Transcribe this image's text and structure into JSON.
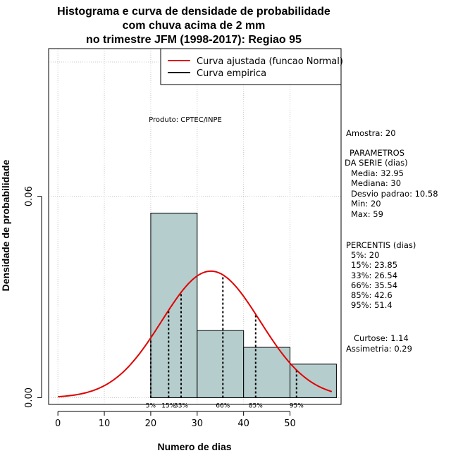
{
  "chart_data": {
    "type": "histogram",
    "title_lines": [
      "Histograma e curva de densidade de probabilidade",
      "com chuva acima de 2 mm",
      "no trimestre JFM (1998-2017): Regiao 95"
    ],
    "xlabel": "Numero de dias",
    "ylabel": "Densidade de probabilidade",
    "xlim": [
      -2,
      61
    ],
    "ylim": [
      -0.002,
      0.104
    ],
    "x_ticks": [
      0,
      10,
      20,
      30,
      40,
      50
    ],
    "y_ticks": [
      0.0,
      0.06
    ],
    "y_tick_labels": [
      "0.00",
      "0.06"
    ],
    "grid_x": [
      0,
      10,
      20,
      30,
      40,
      50
    ],
    "grid_y": [
      0.0,
      0.06,
      0.1
    ],
    "bins": [
      {
        "from": 20,
        "to": 30,
        "density": 0.055
      },
      {
        "from": 30,
        "to": 40,
        "density": 0.02
      },
      {
        "from": 40,
        "to": 50,
        "density": 0.015
      },
      {
        "from": 50,
        "to": 60,
        "density": 0.01
      }
    ],
    "bar_color": "#b5cdcd",
    "normal_fit": {
      "mean": 32.95,
      "sd": 10.58,
      "x_range": [
        0,
        59
      ],
      "color": "#e00000"
    },
    "percentile_lines": [
      {
        "label": "5%",
        "x": 20
      },
      {
        "label": "15%",
        "x": 23.85
      },
      {
        "label": "33%",
        "x": 26.54
      },
      {
        "label": "66%",
        "x": 35.54
      },
      {
        "label": "85%",
        "x": 42.6
      },
      {
        "label": "95%",
        "x": 51.4
      }
    ],
    "legend": [
      {
        "label": "Curva ajustada (funcao Normal)",
        "color": "#e00000"
      },
      {
        "label": "Curva empirica",
        "color": "#000000"
      }
    ],
    "legend_position": "top-right",
    "annotation": "Produto: CPTEC/INPE"
  },
  "side_panel": {
    "sample": "Amostra: 20",
    "params_title_1": "PARAMETROS",
    "params_title_2": "DA SERIE (dias)",
    "mean": "Media: 32.95",
    "median": "Mediana: 30",
    "sd": "Desvio padrao: 10.58",
    "min": "Min: 20",
    "max": "Max: 59",
    "percentis_title": "PERCENTIS (dias)",
    "p5": "5%: 20",
    "p15": "15%: 23.85",
    "p33": "33%: 26.54",
    "p66": "66%: 35.54",
    "p85": "85%: 42.6",
    "p95": "95%: 51.4",
    "kurtosis": "Curtose: 1.14",
    "skewness": "Assimetria: 0.29"
  }
}
